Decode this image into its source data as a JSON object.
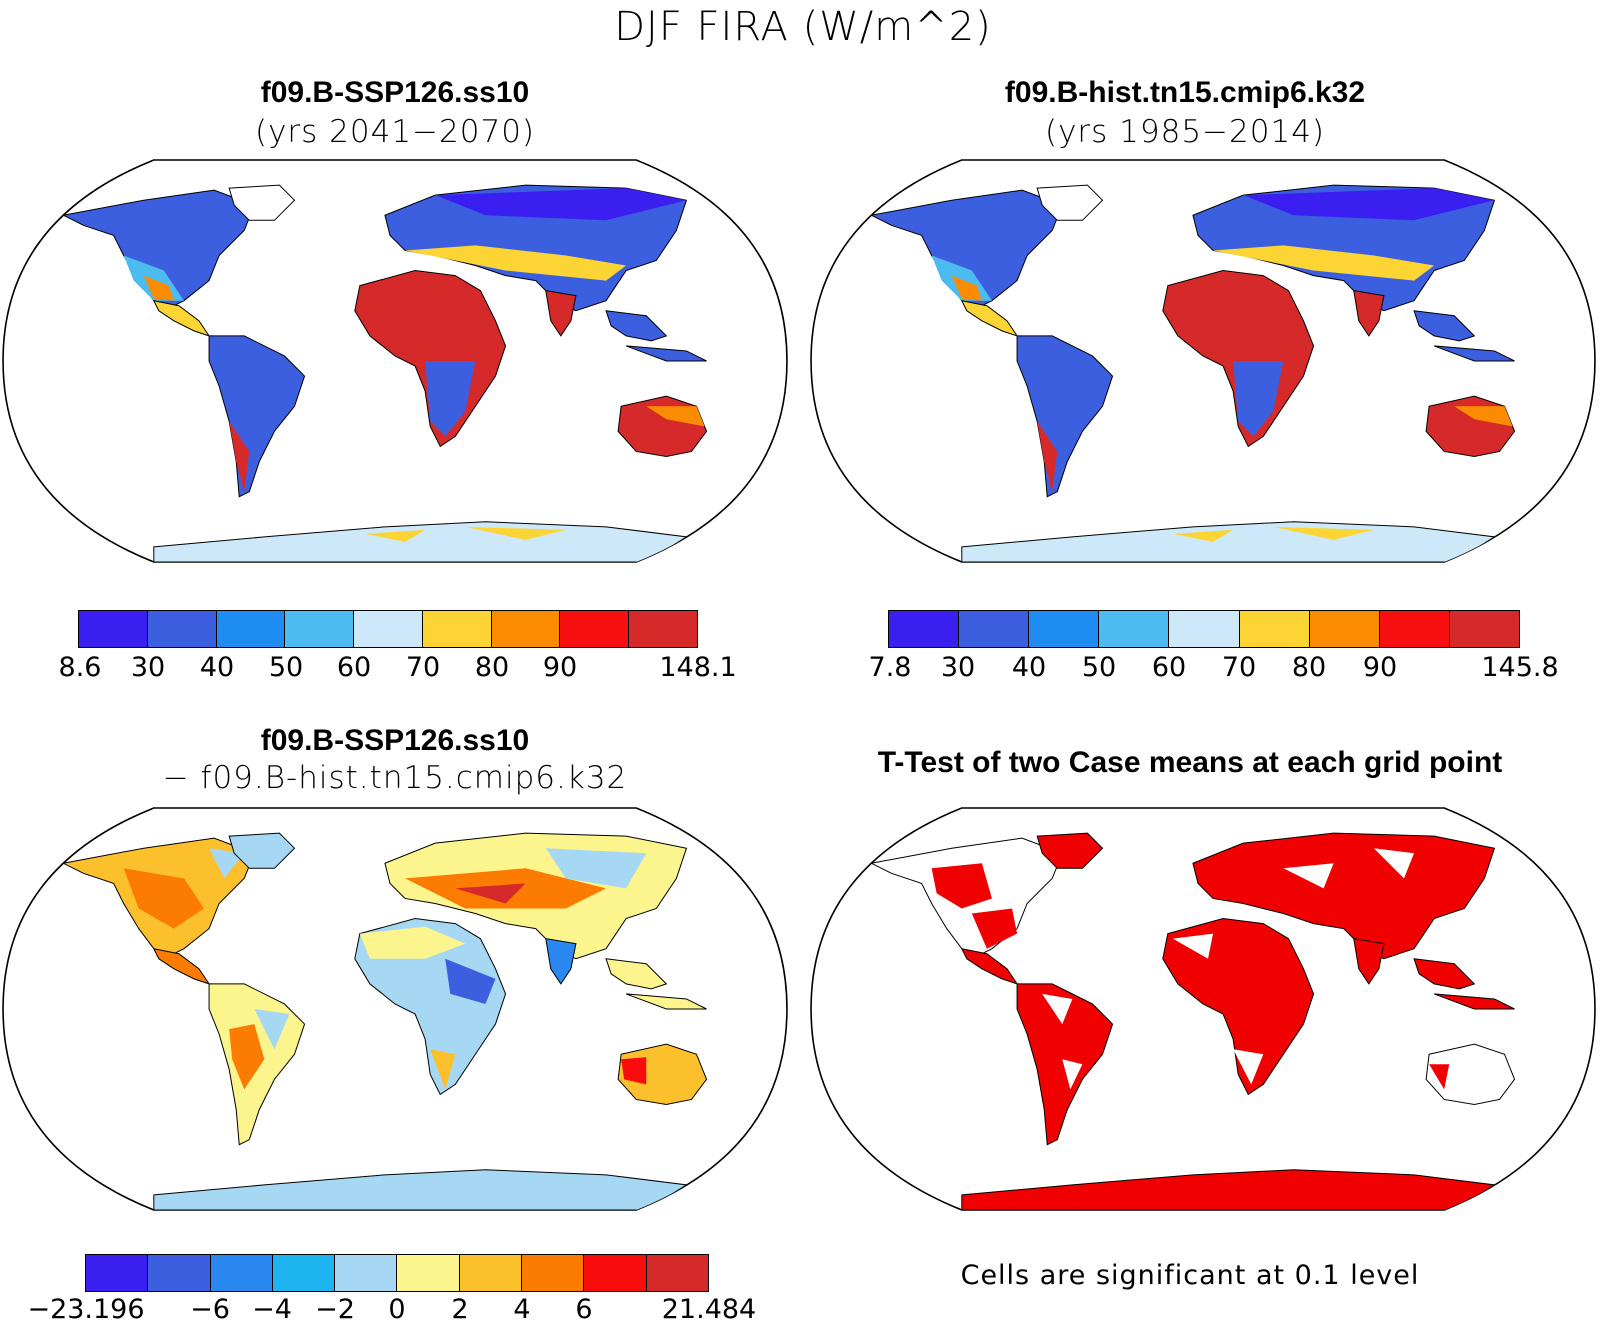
{
  "figure": {
    "title": "DJF FIRA (W/m^2)"
  },
  "panels": [
    {
      "id": "case",
      "title": "f09.B-SSP126.ss10",
      "subtitle": "(yrs 2041−2070)",
      "labelbar": {
        "colors": [
          "#3a1ff0",
          "#3c5fe0",
          "#1e8cf0",
          "#4cbcf0",
          "#cde8f8",
          "#fcd434",
          "#fb8b00",
          "#f81010",
          "#d62a2a"
        ],
        "ticks": [
          "8.6",
          "30",
          "40",
          "50",
          "60",
          "70",
          "80",
          "90",
          "148.1"
        ]
      }
    },
    {
      "id": "control",
      "title": "f09.B-hist.tn15.cmip6.k32",
      "subtitle": "(yrs 1985−2014)",
      "labelbar": {
        "colors": [
          "#3a1ff0",
          "#3c5fe0",
          "#1e8cf0",
          "#4cbcf0",
          "#cde8f8",
          "#fcd434",
          "#fb8b00",
          "#f81010",
          "#d62a2a"
        ],
        "ticks": [
          "7.8",
          "30",
          "40",
          "50",
          "60",
          "70",
          "80",
          "90",
          "145.8"
        ]
      }
    },
    {
      "id": "difference",
      "title": "f09.B-SSP126.ss10",
      "subtitle": "− f09.B-hist.tn15.cmip6.k32",
      "labelbar": {
        "colors": [
          "#3a1ff0",
          "#3c5fe0",
          "#2a88f0",
          "#1eb4f0",
          "#a6d8f4",
          "#fcf48c",
          "#fcc02c",
          "#fb7c00",
          "#f80c0c",
          "#d62a2a"
        ],
        "ticks": [
          "−23.196",
          "−6",
          "−4",
          "−2",
          "0",
          "2",
          "4",
          "6",
          "21.484"
        ]
      }
    },
    {
      "id": "ttest",
      "title": "T-Test of two Case means at each grid point",
      "note": "Cells are significant at 0.1 level",
      "significant_color": "#f00000"
    }
  ]
}
